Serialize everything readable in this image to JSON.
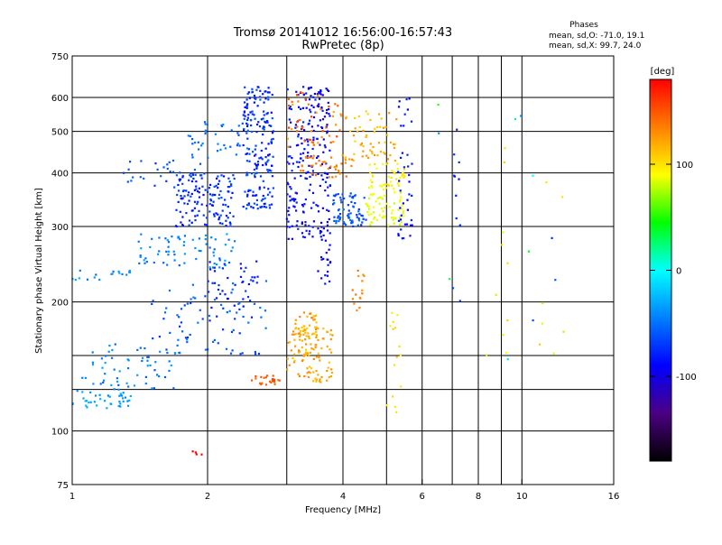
{
  "chart_data": {
    "type": "scatter",
    "title": "Tromsø 20141012 16:56:00-16:57:43",
    "subtitle": "RwPretec (8p)",
    "xlabel": "Frequency [MHz]",
    "ylabel": "Stationary phase Virtual Height [km]",
    "x_scale": "log",
    "y_scale": "log",
    "xlim": [
      1,
      16
    ],
    "ylim": [
      75,
      750
    ],
    "grid": true,
    "x_ticks": [
      1,
      2,
      4,
      6,
      8,
      10,
      16
    ],
    "x_minor_ticks": [
      3,
      5,
      7,
      9
    ],
    "x_tick_labels": [
      "1",
      "2",
      "4",
      "6",
      "8",
      "10",
      "16"
    ],
    "y_ticks": [
      75,
      100,
      200,
      300,
      400,
      500,
      600,
      750
    ],
    "y_minor_ticks": [
      125,
      150
    ],
    "y_tick_labels": [
      "75",
      "100",
      "200",
      "300",
      "400",
      "500",
      "600",
      "750"
    ],
    "phase_box": {
      "title": "Phases",
      "line_o": "mean, sd,O: -71.0, 19.1",
      "line_x": "mean, sd,X:  99.7, 24.0"
    },
    "colorbar": {
      "label": "[deg]",
      "range": [
        -180,
        180
      ],
      "ticks": [
        100,
        0,
        -100
      ],
      "tick_labels": [
        "100",
        "0",
        "-100"
      ],
      "colors": [
        "#ff0000",
        "#ff7f00",
        "#ffff00",
        "#00ff00",
        "#00ffff",
        "#0080ff",
        "#0000ff",
        "#4b0082",
        "#000000"
      ]
    },
    "clusters": [
      {
        "f": [
          1.0,
          1.35
        ],
        "h": [
          112,
          125
        ],
        "n": 40,
        "phase": [
          -70,
          -50
        ]
      },
      {
        "f": [
          1.05,
          1.7
        ],
        "h": [
          125,
          160
        ],
        "n": 60,
        "phase": [
          -85,
          -55
        ]
      },
      {
        "f": [
          1.0,
          1.35
        ],
        "h": [
          225,
          240
        ],
        "n": 18,
        "phase": [
          -80,
          -55
        ]
      },
      {
        "f": [
          1.4,
          2.3
        ],
        "h": [
          240,
          290
        ],
        "n": 70,
        "phase": [
          -80,
          -55
        ]
      },
      {
        "f": [
          1.7,
          2.3
        ],
        "h": [
          300,
          400
        ],
        "n": 130,
        "phase": [
          -110,
          -85
        ]
      },
      {
        "f": [
          1.3,
          2.0
        ],
        "h": [
          370,
          430
        ],
        "n": 35,
        "phase": [
          -95,
          -75
        ]
      },
      {
        "f": [
          1.8,
          2.5
        ],
        "h": [
          430,
          530
        ],
        "n": 40,
        "phase": [
          -85,
          -65
        ]
      },
      {
        "f": [
          2.4,
          2.8
        ],
        "h": [
          330,
          640
        ],
        "n": 190,
        "phase": [
          -110,
          -80
        ]
      },
      {
        "f": [
          3.0,
          3.5
        ],
        "h": [
          280,
          640
        ],
        "n": 150,
        "phase": [
          -120,
          -95
        ]
      },
      {
        "f": [
          3.5,
          3.75
        ],
        "h": [
          220,
          640
        ],
        "n": 100,
        "phase": [
          -125,
          -100
        ]
      },
      {
        "f": [
          3.1,
          3.5
        ],
        "h": [
          150,
          190
        ],
        "n": 40,
        "phase": [
          100,
          130
        ]
      },
      {
        "f": [
          3.0,
          3.8
        ],
        "h": [
          130,
          175
        ],
        "n": 100,
        "phase": [
          100,
          130
        ]
      },
      {
        "f": [
          2.5,
          2.9
        ],
        "h": [
          128,
          135
        ],
        "n": 25,
        "phase": [
          135,
          155
        ]
      },
      {
        "f": [
          3.8,
          4.5
        ],
        "h": [
          300,
          360
        ],
        "n": 70,
        "phase": [
          -95,
          -75
        ]
      },
      {
        "f": [
          4.5,
          5.5
        ],
        "h": [
          300,
          360
        ],
        "n": 60,
        "phase": [
          60,
          80
        ]
      },
      {
        "f": [
          4.5,
          5.5
        ],
        "h": [
          360,
          420
        ],
        "n": 45,
        "phase": [
          75,
          95
        ]
      },
      {
        "f": [
          3.2,
          4.2
        ],
        "h": [
          390,
          440
        ],
        "n": 40,
        "phase": [
          120,
          140
        ]
      },
      {
        "f": [
          4.0,
          5.3
        ],
        "h": [
          420,
          560
        ],
        "n": 60,
        "phase": [
          95,
          125
        ]
      },
      {
        "f": [
          5.3,
          5.7
        ],
        "h": [
          280,
          600
        ],
        "n": 40,
        "phase": [
          -115,
          -95
        ]
      },
      {
        "f": [
          1.5,
          2.7
        ],
        "h": [
          150,
          230
        ],
        "n": 80,
        "phase": [
          -95,
          -70
        ]
      },
      {
        "f": [
          2.0,
          2.6
        ],
        "h": [
          180,
          250
        ],
        "n": 40,
        "phase": [
          -110,
          -90
        ]
      },
      {
        "f": [
          4.2,
          4.5
        ],
        "h": [
          190,
          240
        ],
        "n": 15,
        "phase": [
          120,
          140
        ]
      },
      {
        "f": [
          3.0,
          4.0
        ],
        "h": [
          460,
          620
        ],
        "n": 50,
        "phase": [
          110,
          160
        ]
      },
      {
        "f": [
          5.0,
          5.4
        ],
        "h": [
          110,
          200
        ],
        "n": 15,
        "phase": [
          80,
          100
        ]
      },
      {
        "f": [
          7.0,
          7.3
        ],
        "h": [
          200,
          600
        ],
        "n": 12,
        "phase": [
          -110,
          -90
        ]
      },
      {
        "f": [
          9.0,
          9.3
        ],
        "h": [
          140,
          500
        ],
        "n": 8,
        "phase": [
          60,
          120
        ]
      },
      {
        "f": [
          6.5,
          13
        ],
        "h": [
          140,
          620
        ],
        "n": 20,
        "phase": [
          -100,
          120
        ]
      },
      {
        "f": [
          1.85,
          1.95
        ],
        "h": [
          88,
          92
        ],
        "n": 4,
        "phase": [
          170,
          180
        ]
      }
    ]
  }
}
